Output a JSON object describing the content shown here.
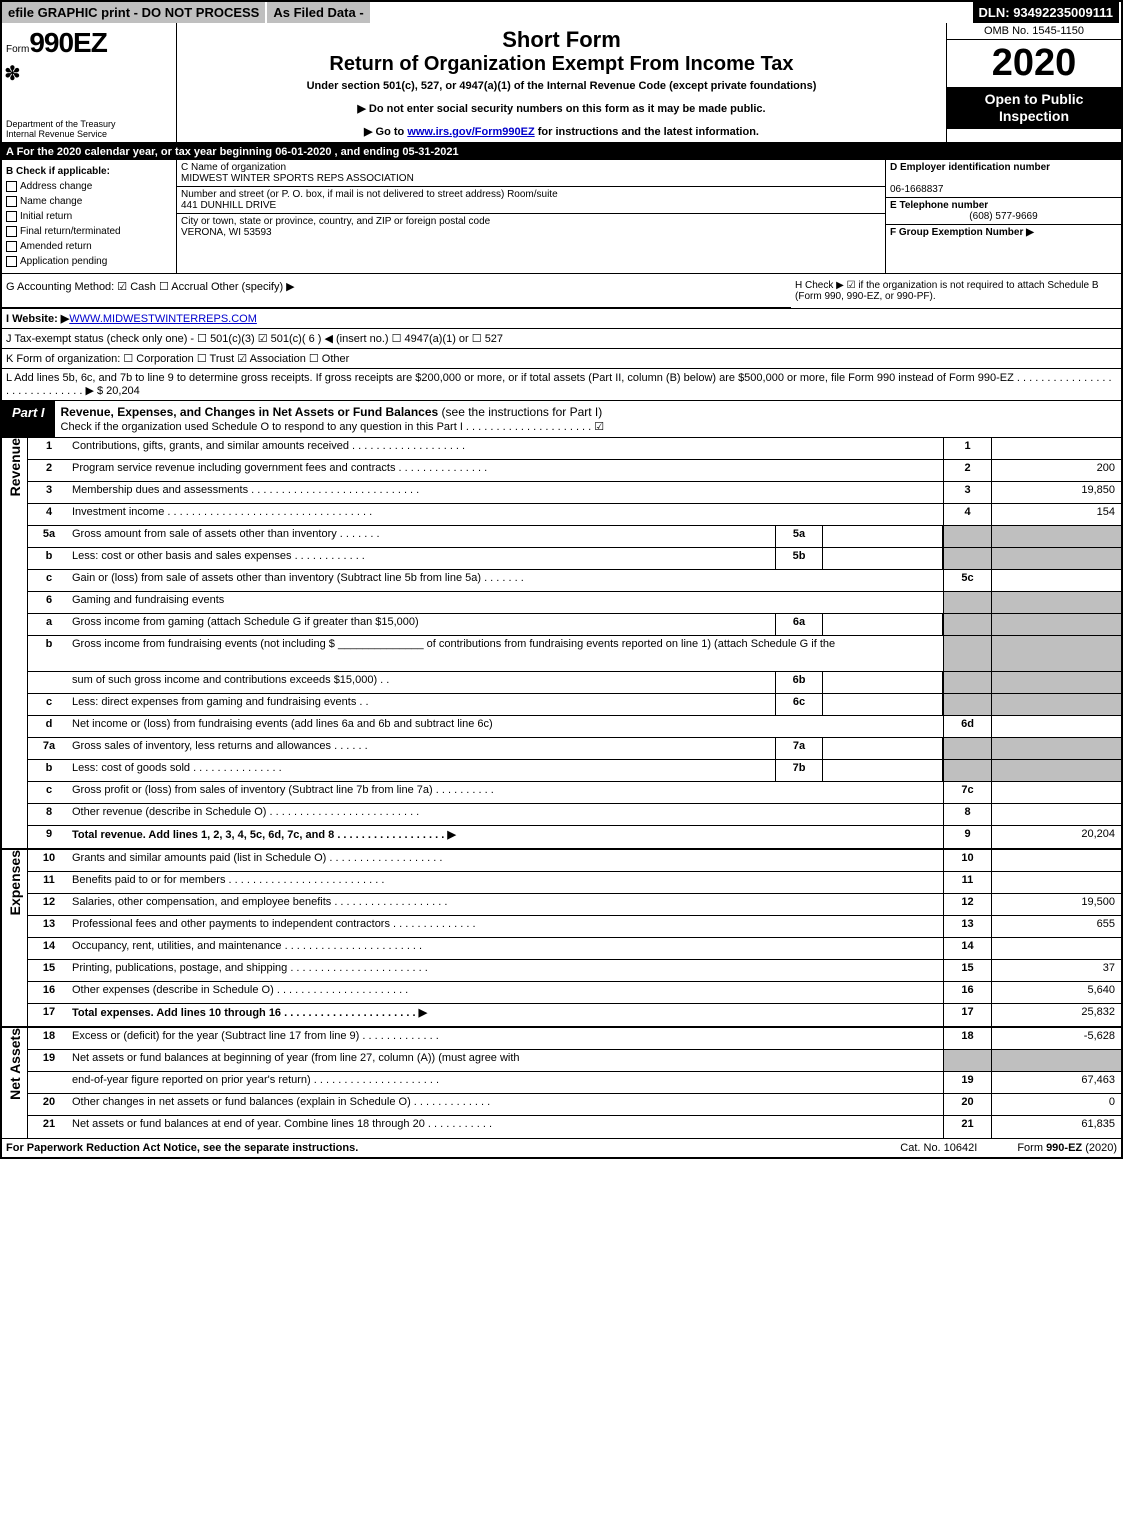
{
  "topbar": {
    "efile": "efile GRAPHIC print - DO NOT PROCESS",
    "asfiled": "As Filed Data -",
    "dln": "DLN: 93492235009111"
  },
  "header": {
    "form_prefix": "Form",
    "form_no": "990EZ",
    "dept": "Department of the Treasury\nInternal Revenue Service",
    "title1": "Short Form",
    "title2": "Return of Organization Exempt From Income Tax",
    "sub": "Under section 501(c), 527, or 4947(a)(1) of the Internal Revenue Code (except private foundations)",
    "sub2a": "▶ Do not enter social security numbers on this form as it may be made public.",
    "sub2b_pre": "▶ Go to ",
    "sub2b_link": "www.irs.gov/Form990EZ",
    "sub2b_post": " for instructions and the latest information.",
    "omb": "OMB No. 1545-1150",
    "year": "2020",
    "blackbox": "Open to Public Inspection"
  },
  "lineA": "A  For the 2020 calendar year, or tax year beginning 06-01-2020 , and ending 05-31-2021",
  "colB": {
    "head": "B  Check if applicable:",
    "items": [
      "Address change",
      "Name change",
      "Initial return",
      "Final return/terminated",
      "Amended return",
      "Application pending"
    ]
  },
  "colC": {
    "c_label": "C Name of organization",
    "c_val": "MIDWEST WINTER SPORTS REPS ASSOCIATION",
    "addr_label": "Number and street (or P. O. box, if mail is not delivered to street address)   Room/suite",
    "addr_val": "441 DUNHILL DRIVE",
    "city_label": "City or town, state or province, country, and ZIP or foreign postal code",
    "city_val": "VERONA, WI  53593"
  },
  "colD": {
    "d_label": "D Employer identification number",
    "d_val": "06-1668837",
    "e_label": "E Telephone number",
    "e_val": "(608) 577-9669",
    "f_label": "F Group Exemption Number  ▶"
  },
  "rowGH": {
    "g": "G Accounting Method:   ☑ Cash   ☐ Accrual   Other (specify) ▶",
    "h": "H   Check ▶  ☑ if the organization is not required to attach Schedule B (Form 990, 990-EZ, or 990-PF)."
  },
  "lineI_pre": "I Website: ▶",
  "lineI_link": "WWW.MIDWESTWINTERREPS.COM",
  "lineJ": "J Tax-exempt status (check only one) - ☐ 501(c)(3) ☑ 501(c)( 6 ) ◀ (insert no.) ☐ 4947(a)(1) or ☐ 527",
  "lineK": "K Form of organization:   ☐ Corporation   ☐ Trust   ☑ Association   ☐ Other",
  "lineL": "L Add lines 5b, 6c, and 7b to line 9 to determine gross receipts. If gross receipts are $200,000 or more, or if total assets (Part II, column (B) below) are $500,000 or more, file Form 990 instead of Form 990-EZ . . . . . . . . . . . . . . . . . . . . . . . . . . . . . ▶ $ 20,204",
  "part1": {
    "tab": "Part I",
    "title": "Revenue, Expenses, and Changes in Net Assets or Fund Balances",
    "title_thin": " (see the instructions for Part I)",
    "check": "Check if the organization used Schedule O to respond to any question in this Part I . . . . . . . . . . . . . . . . . . . . . ☑"
  },
  "revenue_label": "Revenue",
  "expenses_label": "Expenses",
  "netassets_label": "Net Assets",
  "lines": [
    {
      "n": "1",
      "d": "Contributions, gifts, grants, and similar amounts received . . . . . . . . . . . . . . . . . . .",
      "rb": "1",
      "rv": ""
    },
    {
      "n": "2",
      "d": "Program service revenue including government fees and contracts . . . . . . . . . . . . . . .",
      "rb": "2",
      "rv": "200"
    },
    {
      "n": "3",
      "d": "Membership dues and assessments . . . . . . . . . . . . . . . . . . . . . . . . . . . .",
      "rb": "3",
      "rv": "19,850"
    },
    {
      "n": "4",
      "d": "Investment income . . . . . . . . . . . . . . . . . . . . . . . . . . . . . . . . . .",
      "rb": "4",
      "rv": "154"
    },
    {
      "n": "5a",
      "d": "Gross amount from sale of assets other than inventory . . . . . . .",
      "mb": "5a",
      "mv": "",
      "grey": true
    },
    {
      "n": "b",
      "d": "Less: cost or other basis and sales expenses . . . . . . . . . . . .",
      "mb": "5b",
      "mv": "",
      "grey": true
    },
    {
      "n": "c",
      "d": "Gain or (loss) from sale of assets other than inventory (Subtract line 5b from line 5a) . . . . . . .",
      "rb": "5c",
      "rv": ""
    },
    {
      "n": "6",
      "d": "Gaming and fundraising events",
      "grey_r": true
    },
    {
      "n": "a",
      "d": "Gross income from gaming (attach Schedule G if greater than $15,000)",
      "mb": "6a",
      "mv": "",
      "grey": true
    },
    {
      "n": "b",
      "d": "Gross income from fundraising events (not including $ ______________ of contributions from fundraising events reported on line 1) (attach Schedule G if the",
      "grey": true,
      "tall": true
    },
    {
      "n": "",
      "d": "sum of such gross income and contributions exceeds $15,000)    . .",
      "mb": "6b",
      "mv": "",
      "grey": true
    },
    {
      "n": "c",
      "d": "Less: direct expenses from gaming and fundraising events       . .",
      "mb": "6c",
      "mv": "",
      "grey": true
    },
    {
      "n": "d",
      "d": "Net income or (loss) from fundraising events (add lines 6a and 6b and subtract line 6c)",
      "rb": "6d",
      "rv": ""
    },
    {
      "n": "7a",
      "d": "Gross sales of inventory, less returns and allowances . . . . . .",
      "mb": "7a",
      "mv": "",
      "grey": true
    },
    {
      "n": "b",
      "d": "Less: cost of goods sold            . . . . . . . . . . . . . . .",
      "mb": "7b",
      "mv": "",
      "grey": true
    },
    {
      "n": "c",
      "d": "Gross profit or (loss) from sales of inventory (Subtract line 7b from line 7a) . . . . . . . . . .",
      "rb": "7c",
      "rv": ""
    },
    {
      "n": "8",
      "d": "Other revenue (describe in Schedule O) . . . . . . . . . . . . . . . . . . . . . . . . .",
      "rb": "8",
      "rv": ""
    },
    {
      "n": "9",
      "d": "Total revenue. Add lines 1, 2, 3, 4, 5c, 6d, 7c, and 8 . . . . . . . . . . . . . . . . . .  ▶",
      "rb": "9",
      "rv": "20,204",
      "bold": true
    }
  ],
  "exp_lines": [
    {
      "n": "10",
      "d": "Grants and similar amounts paid (list in Schedule O) . . . . . . . . . . . . . . . . . . .",
      "rb": "10",
      "rv": ""
    },
    {
      "n": "11",
      "d": "Benefits paid to or for members     . . . . . . . . . . . . . . . . . . . . . . . . . .",
      "rb": "11",
      "rv": ""
    },
    {
      "n": "12",
      "d": "Salaries, other compensation, and employee benefits . . . . . . . . . . . . . . . . . . .",
      "rb": "12",
      "rv": "19,500"
    },
    {
      "n": "13",
      "d": "Professional fees and other payments to independent contractors . . . . . . . . . . . . . .",
      "rb": "13",
      "rv": "655"
    },
    {
      "n": "14",
      "d": "Occupancy, rent, utilities, and maintenance . . . . . . . . . . . . . . . . . . . . . . .",
      "rb": "14",
      "rv": ""
    },
    {
      "n": "15",
      "d": "Printing, publications, postage, and shipping . . . . . . . . . . . . . . . . . . . . . . .",
      "rb": "15",
      "rv": "37"
    },
    {
      "n": "16",
      "d": "Other expenses (describe in Schedule O)     . . . . . . . . . . . . . . . . . . . . . .",
      "rb": "16",
      "rv": "5,640"
    },
    {
      "n": "17",
      "d": "Total expenses. Add lines 10 through 16    . . . . . . . . . . . . . . . . . . . . . .  ▶",
      "rb": "17",
      "rv": "25,832",
      "bold": true
    }
  ],
  "na_lines": [
    {
      "n": "18",
      "d": "Excess or (deficit) for the year (Subtract line 17 from line 9)       . . . . . . . . . . . . .",
      "rb": "18",
      "rv": "-5,628"
    },
    {
      "n": "19",
      "d": "Net assets or fund balances at beginning of year (from line 27, column (A)) (must agree with",
      "grey_r": true
    },
    {
      "n": "",
      "d": "end-of-year figure reported on prior year's return) . . . . . . . . . . . . . . . . . . . . .",
      "rb": "19",
      "rv": "67,463"
    },
    {
      "n": "20",
      "d": "Other changes in net assets or fund balances (explain in Schedule O) . . . . . . . . . . . . .",
      "rb": "20",
      "rv": "0"
    },
    {
      "n": "21",
      "d": "Net assets or fund balances at end of year. Combine lines 18 through 20 . . . . . . . . . . .",
      "rb": "21",
      "rv": "61,835"
    }
  ],
  "footer": {
    "l": "For Paperwork Reduction Act Notice, see the separate instructions.",
    "m": "Cat. No. 10642I",
    "r": "Form 990-EZ (2020)"
  }
}
